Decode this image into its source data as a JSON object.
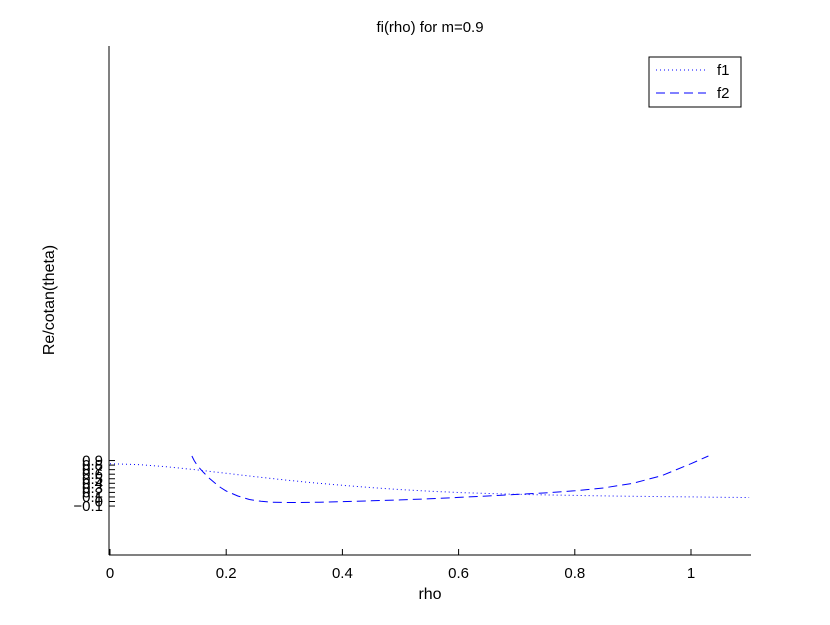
{
  "chart_data": {
    "type": "line",
    "title": "fi(rho) for m=0.9",
    "xlabel": "rho",
    "ylabel": "Re/cotan(theta)",
    "xlim": [
      0,
      1.1
    ],
    "ylim": [
      -0.11,
      1.0
    ],
    "xticks": [
      0,
      0.2,
      0.4,
      0.6,
      0.8,
      1
    ],
    "xtick_labels": [
      "0",
      "0.2",
      "0.4",
      "0.6",
      "0.8",
      "1"
    ],
    "yticks": [
      -0.1,
      0,
      0.1,
      0.2,
      0.3,
      0.4,
      0.5,
      0.6,
      0.7,
      0.8,
      0.9
    ],
    "ytick_labels": [
      "−0.1",
      "0",
      "0.1",
      "0.2",
      "0.3",
      "0.4",
      "0.5",
      "0.6",
      "0.7",
      "0.8",
      "0.9"
    ],
    "grid": false,
    "legend_position": "top-right",
    "series": [
      {
        "name": "f1",
        "style": "dotted",
        "color": "#0000ff",
        "x": [
          0.0,
          0.05,
          0.1,
          0.15,
          0.2,
          0.25,
          0.3,
          0.35,
          0.4,
          0.45,
          0.5,
          0.55,
          0.6,
          0.65,
          0.7,
          0.75,
          0.8,
          0.85,
          0.9,
          0.95,
          1.0,
          1.05,
          1.1
        ],
        "y": [
          0.83,
          0.81,
          0.76,
          0.695,
          0.62,
          0.545,
          0.475,
          0.41,
          0.355,
          0.305,
          0.262,
          0.226,
          0.197,
          0.175,
          0.158,
          0.145,
          0.134,
          0.124,
          0.115,
          0.107,
          0.1,
          0.093,
          0.087
        ]
      },
      {
        "name": "f2",
        "style": "dashed",
        "color": "#0000ff",
        "x": [
          0.141,
          0.145,
          0.15,
          0.155,
          0.16,
          0.17,
          0.18,
          0.19,
          0.2,
          0.22,
          0.24,
          0.26,
          0.28,
          0.3,
          0.32,
          0.34,
          0.36,
          0.4,
          0.45,
          0.5,
          0.55,
          0.6,
          0.65,
          0.7,
          0.75,
          0.8,
          0.85,
          0.9,
          0.95,
          1.0,
          1.03
        ],
        "y": [
          1.0,
          0.9,
          0.8,
          0.72,
          0.65,
          0.52,
          0.41,
          0.31,
          0.23,
          0.12,
          0.045,
          0.005,
          -0.015,
          -0.021,
          -0.022,
          -0.02,
          -0.015,
          -0.003,
          0.015,
          0.035,
          0.06,
          0.09,
          0.12,
          0.155,
          0.19,
          0.235,
          0.3,
          0.4,
          0.57,
          0.83,
          1.0
        ]
      }
    ]
  }
}
